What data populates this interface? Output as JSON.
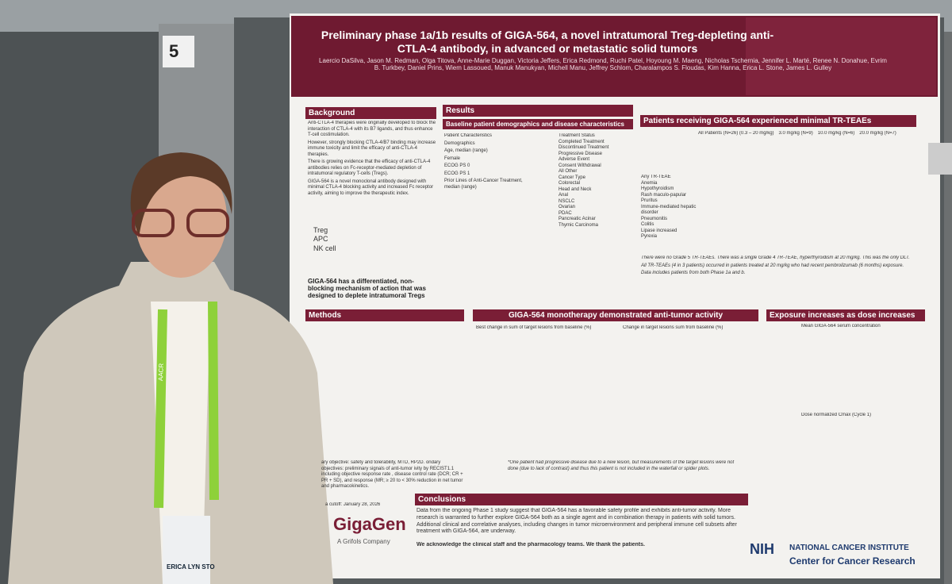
{
  "board_number": "5",
  "poster": {
    "title": "Preliminary phase 1a/1b results of GIGA-564, a novel intratumoral Treg-depleting anti-CTLA-4 antibody, in advanced or metastatic solid tumors",
    "authors": "Laercio DaSilva, Jason M. Redman, Olga Titova, Anne-Marie Duggan, Victoria Jeffers, Erica Redmond, Ruchi Patel, Hoyoung M. Maeng, Nicholas Tschernia, Jennifer L. Marté, Renee N. Donahue, Evrim B. Turkbey, Daniel Prins, Wiem Lassoued, Manuk Manukyan, Michell Manu, Jeffrey Schlom, Charalampos S. Floudas, Kim Hanna, Erica L. Stone, James L. Gulley",
    "background": {
      "heading": "Background",
      "bullets": [
        "Anti-CTLA-4 therapies were originally developed to block the interaction of CTLA-4 with its B7 ligands, and thus enhance T-cell costimulation.",
        "However, strongly blocking CTLA-4/B7 binding may increase immune toxicity and limit the efficacy of anti-CTLA-4 therapies.",
        "There is growing evidence that the efficacy of anti-CTLA-4 antibodies relies on Fc-receptor-mediated depletion of intratumoral regulatory T-cells (Tregs).",
        "GIGA-564 is a novel monoclonal antibody designed with minimal CTLA-4 blocking activity and increased Fc receptor activity, aiming to improve the therapeutic index."
      ],
      "diagram": [
        "Treg",
        "APC",
        "NK cell"
      ],
      "callout": "GIGA-564 has a differentiated, non-blocking mechanism of action that was designed to deplete intratumoral Tregs"
    },
    "results_heading": "Results",
    "baseline": {
      "heading": "Baseline patient demographics and disease characteristics",
      "rows": [
        "Patient Characteristics",
        "Demographics",
        "Age, median (range)",
        "Female",
        "ECOG PS 0",
        "ECOG PS 1",
        "Prior Lines of Anti-Cancer Treatment, median (range)"
      ],
      "rows2": [
        "Treatment Status",
        "Completed Treatment",
        "Discontinued Treatment",
        "Progressive Disease",
        "Adverse Event",
        "Consent Withdrawal",
        "All Other",
        "Cancer Type",
        "Colorectal",
        "Head and Neck",
        "Anal",
        "NSCLC",
        "Ovarian",
        "PDAC",
        "Pancreatic Acinar",
        "Thymic Carcinoma"
      ]
    },
    "ae": {
      "heading": "Patients receiving GIGA-564 experienced minimal TR-TEAEs",
      "columns": [
        "All Patients (N=26) (0.3 – 20 mg/kg)",
        "3.0 mg/kg (N=9)",
        "10.0 mg/kg (N=6)",
        "20.0 mg/kg (N=7)"
      ],
      "rows": [
        "Any TR-TEAE",
        "Anemia",
        "Hypothyroidism",
        "Rash maculo-papular",
        "Pruritus",
        "Immune-mediated hepatic disorder",
        "Pneumonitis",
        "Colitis",
        "Lipase increased",
        "Pyrexia"
      ],
      "notes": [
        "There were no Grade 5 TR-TEAEs. There was a single Grade 4 TR-TEAE, hyperthyroidism at 20 mg/kg. This was the only DLT.",
        "All TR-TEAEs (4 in 3 patients) occurred in patients treated at 20 mg/kg who had recent pembrolizumab (6 months) exposure.",
        "Data includes patients from both Phase 1a and b."
      ]
    },
    "methods": {
      "heading": "Methods",
      "text": "ary objective: safety and tolerability, MTD, RP2D. ondary objectives: preliminary signals of anti-tumor ivity by RECIST1.1 including objective response rate , disease control rate (DCR; CR + PR + SD), and response (MR; ≥ 20 to < 30% reduction in net tumor and pharmacokinetics.",
      "cutoff": "a cutoff: January 28, 2026"
    },
    "activity": {
      "heading": "GIGA-564 monotherapy demonstrated anti-tumor activity",
      "waterfall": "Best change in sum of target lesions from baseline (%)",
      "spider": "Change in target lesions sum from baseline (%)",
      "footnote": "*One patient had progressive disease due to a new lesion, but measurements of the target lesions were not done (due to lack of contrast) and thus this patient is not included in the waterfall or spider plots."
    },
    "exposure": {
      "heading": "Exposure increases as dose increases",
      "pk": "Mean GIGA-564 serum concentration",
      "cmax": "Dose normalized Cmax (Cycle 1)"
    },
    "conclusions": {
      "heading": "Conclusions",
      "text": "Data from the ongoing Phase 1 study suggest that GIGA-564 has a favorable safety profile and exhibits anti-tumor activity. More research is warranted to further explore GIGA-564 both as a single agent and in combination therapy in patients with solid tumors. Additional clinical and correlative analyses, including changes in tumor microenvironment and peripheral immune cell subsets after treatment with GIGA-564, are underway.",
      "thanks": "We acknowledge the clinical staff and the pharmacology teams. We thank the patients."
    },
    "logos": {
      "gigagen": "GigaGen",
      "grifols": "A Grifols Company",
      "nih": "NIH",
      "nci": "NATIONAL CANCER INSTITUTE",
      "ccr": "Center for Cancer Research"
    }
  },
  "badge": {
    "name": "ERICA LYN STO",
    "lanyard": "AACR"
  }
}
